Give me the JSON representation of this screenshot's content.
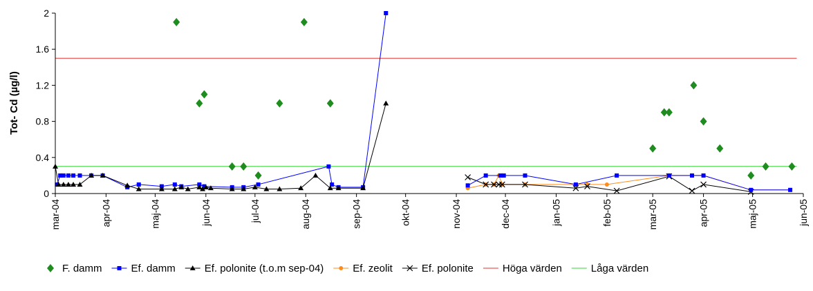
{
  "chart_data": {
    "type": "line",
    "title": "",
    "xlabel": "",
    "ylabel": "Tot- Cd (µg/l)",
    "ylim": [
      0,
      2
    ],
    "y_ticks": [
      "0",
      "0.4",
      "0.8",
      "1.2",
      "1.6",
      "2"
    ],
    "y_tick_values": [
      0,
      0.4,
      0.8,
      1.2,
      1.6,
      2
    ],
    "xlim": [
      "2004-03-01",
      "2005-06-01"
    ],
    "x_ticks": [
      {
        "date": "2004-03-01",
        "label": "mar-04"
      },
      {
        "date": "2004-04-01",
        "label": "apr-04"
      },
      {
        "date": "2004-05-01",
        "label": "maj-04"
      },
      {
        "date": "2004-06-01",
        "label": "jun-04"
      },
      {
        "date": "2004-07-01",
        "label": "jul-04"
      },
      {
        "date": "2004-08-01",
        "label": "aug-04"
      },
      {
        "date": "2004-09-01",
        "label": "sep-04"
      },
      {
        "date": "2004-10-01",
        "label": "okt-04"
      },
      {
        "date": "2004-11-01",
        "label": "nov-04"
      },
      {
        "date": "2004-12-01",
        "label": "dec-04"
      },
      {
        "date": "2005-01-01",
        "label": "jan-05"
      },
      {
        "date": "2005-02-01",
        "label": "feb-05"
      },
      {
        "date": "2005-03-01",
        "label": "mar-05"
      },
      {
        "date": "2005-04-01",
        "label": "apr-05"
      },
      {
        "date": "2005-05-01",
        "label": "maj-05"
      },
      {
        "date": "2005-06-01",
        "label": "jun-05"
      }
    ],
    "grid": false,
    "legend_position": "bottom",
    "series": [
      {
        "name": "F. damm",
        "color": "#1e8c1e",
        "marker": "diamond",
        "line": false,
        "points": [
          {
            "x": "2004-05-14",
            "y": 1.9
          },
          {
            "x": "2004-05-28",
            "y": 1.0
          },
          {
            "x": "2004-05-31",
            "y": 1.1
          },
          {
            "x": "2004-06-17",
            "y": 0.3
          },
          {
            "x": "2004-06-24",
            "y": 0.3
          },
          {
            "x": "2004-07-03",
            "y": 0.2
          },
          {
            "x": "2004-07-16",
            "y": 1.0
          },
          {
            "x": "2004-07-31",
            "y": 1.9
          },
          {
            "x": "2004-08-16",
            "y": 1.0
          },
          {
            "x": "2005-03-01",
            "y": 0.5
          },
          {
            "x": "2005-03-08",
            "y": 0.9
          },
          {
            "x": "2005-03-11",
            "y": 0.9
          },
          {
            "x": "2005-03-26",
            "y": 1.2
          },
          {
            "x": "2005-04-01",
            "y": 0.8
          },
          {
            "x": "2005-04-11",
            "y": 0.5
          },
          {
            "x": "2005-04-30",
            "y": 0.2
          },
          {
            "x": "2005-05-09",
            "y": 0.3
          },
          {
            "x": "2005-05-25",
            "y": 0.3
          }
        ]
      },
      {
        "name": "Ef. damm",
        "color": "#0000ff",
        "marker": "square",
        "line": true,
        "points": [
          {
            "x": "2004-03-02",
            "y": 0.1
          },
          {
            "x": "2004-03-04",
            "y": 0.2
          },
          {
            "x": "2004-03-06",
            "y": 0.2
          },
          {
            "x": "2004-03-09",
            "y": 0.2
          },
          {
            "x": "2004-03-12",
            "y": 0.2
          },
          {
            "x": "2004-03-16",
            "y": 0.2
          },
          {
            "x": "2004-03-23",
            "y": 0.2
          },
          {
            "x": "2004-03-30",
            "y": 0.2
          },
          {
            "x": "2004-04-14",
            "y": 0.07
          },
          {
            "x": "2004-04-21",
            "y": 0.1
          },
          {
            "x": "2004-05-05",
            "y": 0.08
          },
          {
            "x": "2004-05-13",
            "y": 0.1
          },
          {
            "x": "2004-05-17",
            "y": 0.08
          },
          {
            "x": "2004-05-28",
            "y": 0.1
          },
          {
            "x": "2004-05-31",
            "y": 0.08
          },
          {
            "x": "2004-06-17",
            "y": 0.07
          },
          {
            "x": "2004-06-24",
            "y": 0.07
          },
          {
            "x": "2004-07-03",
            "y": 0.1
          },
          {
            "x": "2004-08-15",
            "y": 0.3
          },
          {
            "x": "2004-08-17",
            "y": 0.1
          },
          {
            "x": "2004-08-21",
            "y": 0.07
          },
          {
            "x": "2004-09-05",
            "y": 0.07
          },
          {
            "x": "2004-09-19",
            "y": 2.0
          }
        ]
      },
      {
        "name": "Ef. polonite (t.o.m sep-04)",
        "color": "#000000",
        "marker": "triangle",
        "line": true,
        "points": [
          {
            "x": "2004-03-01",
            "y": 0.3
          },
          {
            "x": "2004-03-03",
            "y": 0.1
          },
          {
            "x": "2004-03-06",
            "y": 0.1
          },
          {
            "x": "2004-03-09",
            "y": 0.1
          },
          {
            "x": "2004-03-12",
            "y": 0.1
          },
          {
            "x": "2004-03-16",
            "y": 0.1
          },
          {
            "x": "2004-03-23",
            "y": 0.2
          },
          {
            "x": "2004-03-30",
            "y": 0.2
          },
          {
            "x": "2004-04-14",
            "y": 0.09
          },
          {
            "x": "2004-04-21",
            "y": 0.05
          },
          {
            "x": "2004-05-05",
            "y": 0.05
          },
          {
            "x": "2004-05-13",
            "y": 0.05
          },
          {
            "x": "2004-05-17",
            "y": 0.07
          },
          {
            "x": "2004-05-21",
            "y": 0.05
          },
          {
            "x": "2004-05-28",
            "y": 0.07
          },
          {
            "x": "2004-05-30",
            "y": 0.05
          },
          {
            "x": "2004-06-01",
            "y": 0.07
          },
          {
            "x": "2004-06-04",
            "y": 0.06
          },
          {
            "x": "2004-06-17",
            "y": 0.05
          },
          {
            "x": "2004-06-24",
            "y": 0.05
          },
          {
            "x": "2004-07-01",
            "y": 0.07
          },
          {
            "x": "2004-07-08",
            "y": 0.05
          },
          {
            "x": "2004-07-16",
            "y": 0.05
          },
          {
            "x": "2004-07-29",
            "y": 0.06
          },
          {
            "x": "2004-08-07",
            "y": 0.2
          },
          {
            "x": "2004-08-16",
            "y": 0.06
          },
          {
            "x": "2004-08-21",
            "y": 0.06
          },
          {
            "x": "2004-09-05",
            "y": 0.06
          },
          {
            "x": "2004-09-19",
            "y": 1.0
          }
        ]
      },
      {
        "name": "Ef. zeolit",
        "color": "#ff8c1a",
        "marker": "circle",
        "line": true,
        "points": [
          {
            "x": "2004-11-08",
            "y": 0.06
          },
          {
            "x": "2004-11-19",
            "y": 0.1
          },
          {
            "x": "2004-11-24",
            "y": 0.1
          },
          {
            "x": "2004-11-27",
            "y": 0.2
          },
          {
            "x": "2004-11-29",
            "y": 0.1
          },
          {
            "x": "2004-12-13",
            "y": 0.1
          },
          {
            "x": "2005-01-13",
            "y": 0.1
          },
          {
            "x": "2005-01-20",
            "y": 0.1
          },
          {
            "x": "2005-02-01",
            "y": 0.1
          },
          {
            "x": "2005-03-11",
            "y": 0.2
          },
          {
            "x": "2005-03-25",
            "y": 0.2
          },
          {
            "x": "2005-04-01",
            "y": 0.2
          },
          {
            "x": "2005-04-30",
            "y": 0.04
          },
          {
            "x": "2005-05-24",
            "y": 0.04
          }
        ]
      },
      {
        "name": "Ef. polonite",
        "color": "#000000",
        "marker": "x",
        "line": true,
        "points": [
          {
            "x": "2004-11-08",
            "y": 0.18
          },
          {
            "x": "2004-11-19",
            "y": 0.1
          },
          {
            "x": "2004-11-24",
            "y": 0.1
          },
          {
            "x": "2004-11-27",
            "y": 0.1
          },
          {
            "x": "2004-11-29",
            "y": 0.1
          },
          {
            "x": "2004-12-13",
            "y": 0.1
          },
          {
            "x": "2005-01-13",
            "y": 0.06
          },
          {
            "x": "2005-01-20",
            "y": 0.08
          },
          {
            "x": "2005-02-07",
            "y": 0.03
          },
          {
            "x": "2005-03-11",
            "y": 0.19
          },
          {
            "x": "2005-03-25",
            "y": 0.03
          },
          {
            "x": "2005-04-01",
            "y": 0.1
          },
          {
            "x": "2005-04-30",
            "y": 0.02
          }
        ]
      },
      {
        "name": "Höga värden",
        "color": "#e8302e",
        "marker": "none",
        "line": true,
        "points": [
          {
            "x": "2004-03-01",
            "y": 1.5
          },
          {
            "x": "2005-05-28",
            "y": 1.5
          }
        ]
      },
      {
        "name": "Låga värden",
        "color": "#33d433",
        "marker": "none",
        "line": true,
        "points": [
          {
            "x": "2004-03-01",
            "y": 0.3
          },
          {
            "x": "2005-05-28",
            "y": 0.3
          }
        ]
      },
      {
        "name": "",
        "color": "#0000ff",
        "marker": "square",
        "line": true,
        "legend": false,
        "points": [
          {
            "x": "2004-11-08",
            "y": 0.09
          },
          {
            "x": "2004-11-19",
            "y": 0.2
          },
          {
            "x": "2004-11-28",
            "y": 0.2
          },
          {
            "x": "2004-11-30",
            "y": 0.2
          },
          {
            "x": "2004-12-13",
            "y": 0.2
          },
          {
            "x": "2005-01-13",
            "y": 0.1
          },
          {
            "x": "2005-02-07",
            "y": 0.2
          },
          {
            "x": "2005-03-11",
            "y": 0.2
          },
          {
            "x": "2005-03-25",
            "y": 0.2
          },
          {
            "x": "2005-04-01",
            "y": 0.2
          },
          {
            "x": "2005-04-30",
            "y": 0.04
          },
          {
            "x": "2005-05-24",
            "y": 0.04
          }
        ]
      }
    ]
  }
}
